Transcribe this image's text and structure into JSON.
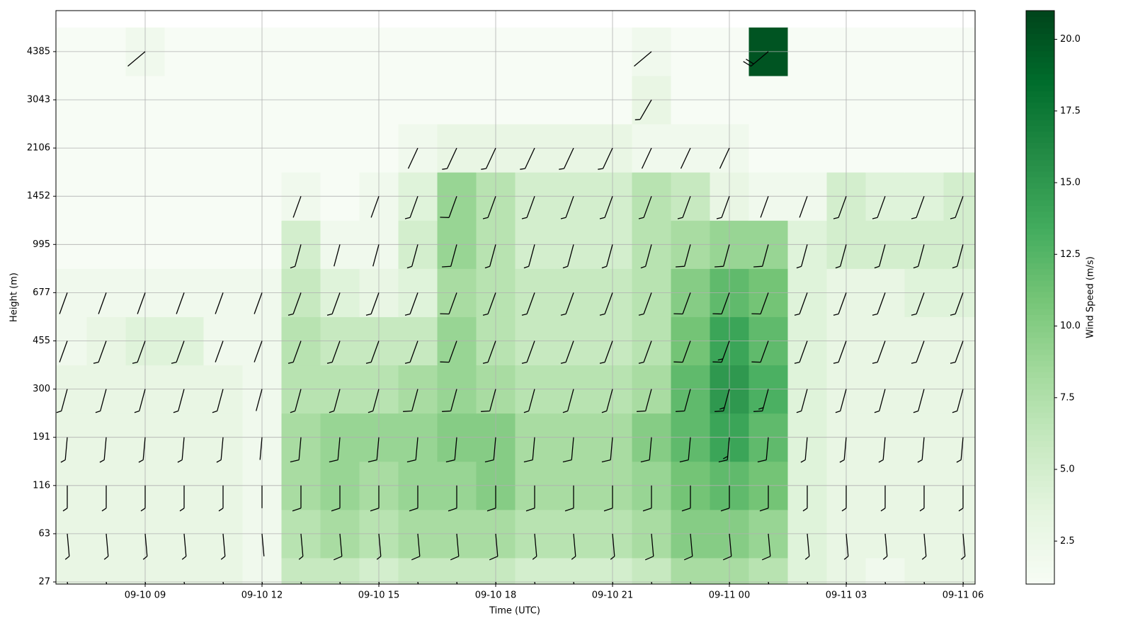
{
  "chart_data": {
    "type": "heatmap-barbs",
    "x_label": "Time (UTC)",
    "y_label": "Height (m)",
    "colorbar_label": "Wind Speed (m/s)",
    "categories": [
      "09-10 07",
      "09-10 08",
      "09-10 09",
      "09-10 10",
      "09-10 11",
      "09-10 12",
      "09-10 13",
      "09-10 14",
      "09-10 15",
      "09-10 16",
      "09-10 17",
      "09-10 18",
      "09-10 19",
      "09-10 20",
      "09-10 21",
      "09-10 22",
      "09-10 23",
      "09-11 00",
      "09-11 01",
      "09-11 02",
      "09-11 03",
      "09-11 04",
      "09-11 05",
      "09-11 06"
    ],
    "xticks": [
      "09-10 09",
      "09-10 12",
      "09-10 15",
      "09-10 18",
      "09-10 21",
      "09-11 00",
      "09-11 03",
      "09-11 06"
    ],
    "heights": [
      27,
      63,
      116,
      191,
      300,
      455,
      677,
      995,
      1452,
      2106,
      3043,
      4385
    ],
    "speed": [
      [
        3,
        3,
        3,
        3,
        3,
        2,
        6,
        6,
        5,
        6,
        6,
        6,
        5,
        5,
        5,
        6,
        8,
        8,
        7,
        4,
        3,
        2,
        3,
        3
      ],
      [
        3,
        3,
        3,
        3,
        3,
        2,
        7,
        8,
        7,
        8,
        8,
        8,
        7,
        7,
        7,
        8,
        10,
        10,
        9,
        4,
        3,
        3,
        3,
        3
      ],
      [
        3,
        3,
        3,
        3,
        3,
        2,
        8,
        9,
        8,
        9,
        9,
        10,
        8,
        8,
        8,
        9,
        11,
        12,
        11,
        4,
        3,
        3,
        3,
        3
      ],
      [
        3,
        3,
        3,
        3,
        3,
        2,
        8,
        9,
        9,
        9,
        10,
        10,
        8,
        8,
        8,
        10,
        12,
        14,
        12,
        4,
        3,
        3,
        3,
        3
      ],
      [
        3,
        3,
        3,
        3,
        3,
        2,
        7,
        7,
        7,
        8,
        9,
        8,
        7,
        7,
        7,
        8,
        12,
        15,
        13,
        4,
        3,
        3,
        3,
        3
      ],
      [
        2,
        3,
        4,
        4,
        2,
        2,
        7,
        6,
        6,
        6,
        9,
        7,
        6,
        6,
        6,
        7,
        11,
        14,
        12,
        4,
        3,
        3,
        3,
        3
      ],
      [
        2,
        2,
        2,
        2,
        2,
        2,
        6,
        4,
        3,
        4,
        8,
        7,
        6,
        6,
        6,
        7,
        10,
        12,
        11,
        4,
        3,
        3,
        4,
        4
      ],
      [
        1,
        1,
        1,
        1,
        1,
        1,
        5,
        2,
        2,
        5,
        9,
        7,
        5,
        5,
        5,
        7,
        8,
        9,
        9,
        4,
        5,
        5,
        5,
        5
      ],
      [
        1,
        1,
        1,
        1,
        1,
        1,
        2,
        1,
        2,
        4,
        9,
        7,
        5,
        5,
        5,
        7,
        6,
        3,
        2,
        2,
        5,
        4,
        4,
        5
      ],
      [
        1,
        1,
        1,
        1,
        1,
        1,
        1,
        1,
        1,
        2,
        3,
        3,
        3,
        3,
        3,
        2,
        2,
        2,
        1,
        1,
        1,
        1,
        1,
        1
      ],
      [
        1,
        1,
        1,
        1,
        1,
        1,
        1,
        1,
        1,
        1,
        1,
        1,
        1,
        1,
        1,
        3,
        1,
        1,
        1,
        1,
        1,
        1,
        1,
        1
      ],
      [
        1,
        1,
        2,
        1,
        1,
        1,
        1,
        1,
        1,
        1,
        1,
        1,
        1,
        1,
        1,
        2,
        1,
        1,
        20,
        1,
        1,
        1,
        1,
        1
      ]
    ],
    "direction": [
      170,
      175,
      180,
      185,
      195,
      200,
      200,
      195,
      200,
      205,
      210,
      230
    ],
    "clim": [
      1,
      21
    ],
    "cticks": [
      2.5,
      {
        "value": 5,
        "label": "5.0"
      },
      7.5,
      {
        "value": 10,
        "label": "10.0"
      },
      12.5,
      {
        "value": 15,
        "label": "15.0"
      },
      17.5,
      {
        "value": 20,
        "label": "20.0"
      }
    ],
    "colormap": "Greens",
    "grid": true
  }
}
